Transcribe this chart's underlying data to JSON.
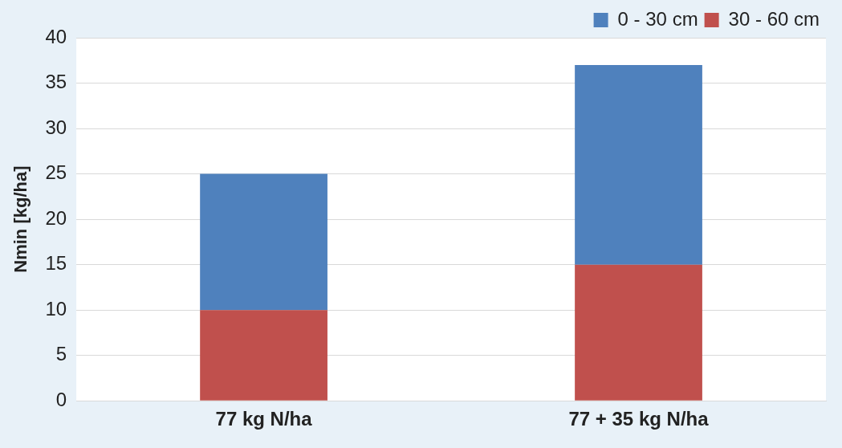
{
  "chart_data": {
    "type": "bar",
    "stacked": true,
    "ylabel": "Nmin [kg/ha]",
    "categories": [
      "77 kg N/ha",
      "77 + 35 kg N/ha"
    ],
    "series": [
      {
        "name": "30 - 60 cm",
        "color": "#c0504d",
        "values": [
          10,
          15
        ]
      },
      {
        "name": "0 - 30 cm",
        "color": "#4f81bd",
        "values": [
          15,
          22
        ]
      }
    ],
    "ylim": [
      0,
      40
    ],
    "yticks": [
      0,
      5,
      10,
      15,
      20,
      25,
      30,
      35,
      40
    ],
    "grid": "y",
    "legend": "top right"
  }
}
